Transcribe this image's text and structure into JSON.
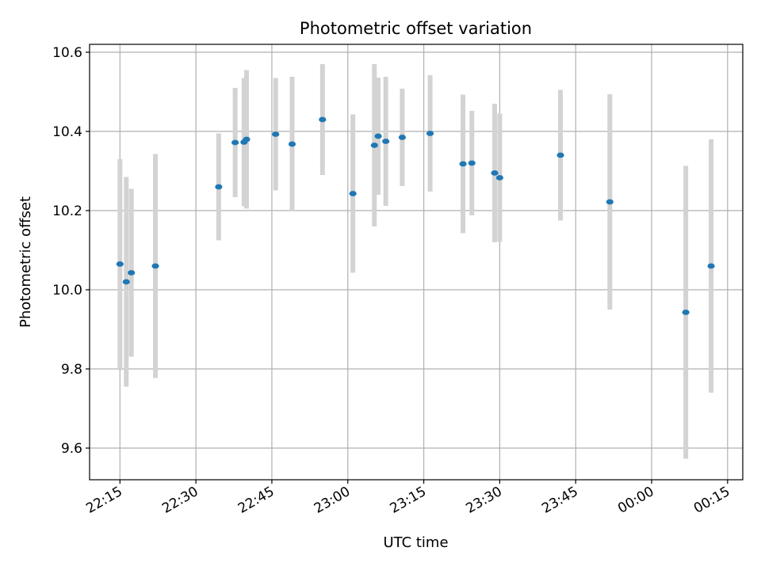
{
  "chart_data": {
    "type": "scatter",
    "title": "Photometric offset variation",
    "xlabel": "UTC time",
    "ylabel": "Photometric offset",
    "x_axis": "time",
    "xlim": [
      "22:09",
      "00:18"
    ],
    "xticks": [
      "22:15",
      "22:30",
      "22:45",
      "23:00",
      "23:15",
      "23:30",
      "23:45",
      "00:00",
      "00:15"
    ],
    "ylim": [
      9.52,
      10.62
    ],
    "yticks": [
      9.6,
      9.8,
      10.0,
      10.2,
      10.4,
      10.6
    ],
    "ytick_labels": [
      "9.6",
      "9.8",
      "10.0",
      "10.2",
      "10.4",
      "10.6"
    ],
    "grid": true,
    "marker_color": "#1f77b4",
    "errorbar_color": "#d3d3d3",
    "points": [
      {
        "time": "22:15:00",
        "y": 10.065,
        "err": 0.265
      },
      {
        "time": "22:16:15",
        "y": 10.02,
        "err": 0.265
      },
      {
        "time": "22:17:15",
        "y": 10.043,
        "err": 0.212
      },
      {
        "time": "22:22:00",
        "y": 10.06,
        "err": 0.283
      },
      {
        "time": "22:34:30",
        "y": 10.26,
        "err": 0.135
      },
      {
        "time": "22:37:45",
        "y": 10.372,
        "err": 0.138
      },
      {
        "time": "22:39:30",
        "y": 10.373,
        "err": 0.162
      },
      {
        "time": "22:40:00",
        "y": 10.38,
        "err": 0.175
      },
      {
        "time": "22:45:45",
        "y": 10.393,
        "err": 0.142
      },
      {
        "time": "22:49:00",
        "y": 10.368,
        "err": 0.17
      },
      {
        "time": "22:55:00",
        "y": 10.43,
        "err": 0.14
      },
      {
        "time": "23:01:00",
        "y": 10.243,
        "err": 0.2
      },
      {
        "time": "23:05:15",
        "y": 10.365,
        "err": 0.205
      },
      {
        "time": "23:06:00",
        "y": 10.388,
        "err": 0.148
      },
      {
        "time": "23:07:30",
        "y": 10.375,
        "err": 0.163
      },
      {
        "time": "23:10:45",
        "y": 10.385,
        "err": 0.123
      },
      {
        "time": "23:16:15",
        "y": 10.395,
        "err": 0.147
      },
      {
        "time": "23:22:45",
        "y": 10.318,
        "err": 0.175
      },
      {
        "time": "23:24:30",
        "y": 10.32,
        "err": 0.132
      },
      {
        "time": "23:29:00",
        "y": 10.295,
        "err": 0.175
      },
      {
        "time": "23:30:00",
        "y": 10.283,
        "err": 0.162
      },
      {
        "time": "23:42:00",
        "y": 10.34,
        "err": 0.165
      },
      {
        "time": "23:51:45",
        "y": 10.222,
        "err": 0.272
      },
      {
        "time": "00:06:45",
        "y": 9.943,
        "err": 0.37
      },
      {
        "time": "00:11:45",
        "y": 10.06,
        "err": 0.32
      }
    ]
  }
}
